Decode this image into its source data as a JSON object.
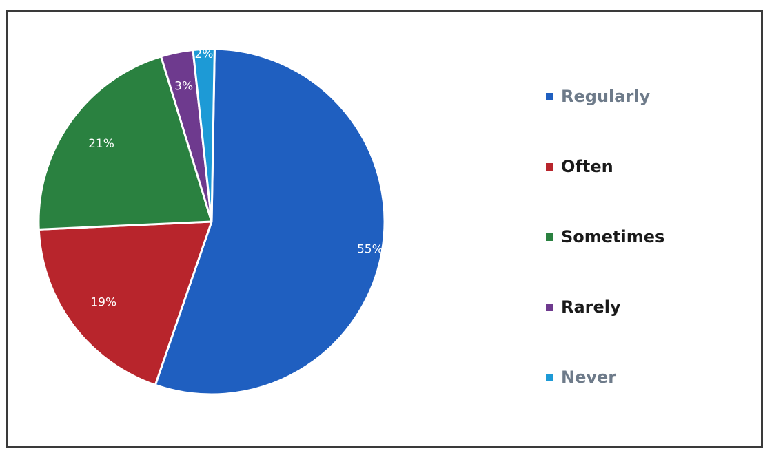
{
  "chart_data": {
    "type": "pie",
    "title": "",
    "legend_position": "right",
    "slices": [
      {
        "label": "Regularly",
        "value": 55,
        "display": "55%",
        "color": "#1f5fc0",
        "legend_text_color": "#6e7b8a"
      },
      {
        "label": "Often",
        "value": 19,
        "display": "19%",
        "color": "#b8252c",
        "legend_text_color": "#1a1a1a"
      },
      {
        "label": "Sometimes",
        "value": 21,
        "display": "21%",
        "color": "#2a8140",
        "legend_text_color": "#1a1a1a"
      },
      {
        "label": "Rarely",
        "value": 3,
        "display": "3%",
        "color": "#6e3a8e",
        "legend_text_color": "#1a1a1a"
      },
      {
        "label": "Never",
        "value": 2,
        "display": "2%",
        "color": "#1d9ad6",
        "legend_text_color": "#6e7b8a"
      }
    ]
  }
}
